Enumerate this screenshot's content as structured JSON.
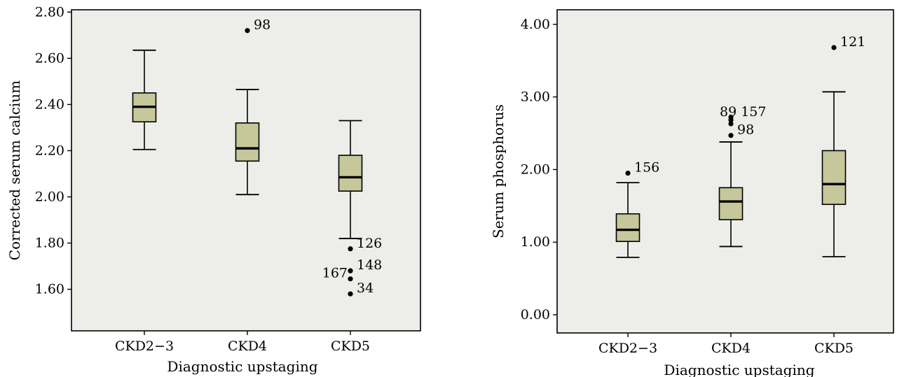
{
  "colors": {
    "plot_background": "#ededea",
    "box_fill": "#c6c79a",
    "stroke": "#000000"
  },
  "chart_data": [
    {
      "type": "boxplot",
      "xlabel": "Diagnostic upstaging",
      "ylabel": "Corrected serum calcium",
      "ylim": [
        1.42,
        2.81
      ],
      "yticks": [
        1.6,
        1.8,
        2.0,
        2.2,
        2.4,
        2.6,
        2.8
      ],
      "ytick_labels": [
        "1.60",
        "1.80",
        "2.00",
        "2.20",
        "2.40",
        "2.60",
        "2.80"
      ],
      "grid": false,
      "categories": [
        "CKD2−3",
        "CKD4",
        "CKD5"
      ],
      "boxes": [
        {
          "whisker_low": 2.205,
          "q1": 2.325,
          "median": 2.39,
          "q3": 2.45,
          "whisker_high": 2.635,
          "outliers": []
        },
        {
          "whisker_low": 2.01,
          "q1": 2.155,
          "median": 2.21,
          "q3": 2.32,
          "whisker_high": 2.465,
          "outliers": [
            {
              "value": 2.72,
              "label": "98",
              "side": "right"
            }
          ]
        },
        {
          "whisker_low": 1.82,
          "q1": 2.025,
          "median": 2.085,
          "q3": 2.18,
          "whisker_high": 2.33,
          "outliers": [
            {
              "value": 1.775,
              "label": "126",
              "side": "right"
            },
            {
              "value": 1.68,
              "label": "148",
              "side": "right"
            },
            {
              "value": 1.645,
              "label": "167",
              "side": "left"
            },
            {
              "value": 1.58,
              "label": "34",
              "side": "right"
            }
          ]
        }
      ]
    },
    {
      "type": "boxplot",
      "xlabel": "Diagnostic upstaging",
      "ylabel": "Serum phosphorus",
      "ylim": [
        -0.25,
        4.2
      ],
      "yticks": [
        0,
        1,
        2,
        3,
        4
      ],
      "ytick_labels": [
        "0.00",
        "1.00",
        "2.00",
        "3.00",
        "4.00"
      ],
      "grid": false,
      "categories": [
        "CKD2−3",
        "CKD4",
        "CKD5"
      ],
      "boxes": [
        {
          "whisker_low": 0.79,
          "q1": 1.01,
          "median": 1.17,
          "q3": 1.39,
          "whisker_high": 1.82,
          "outliers": [
            {
              "value": 1.95,
              "label": "156",
              "side": "right"
            }
          ]
        },
        {
          "whisker_low": 0.94,
          "q1": 1.31,
          "median": 1.56,
          "q3": 1.75,
          "whisker_high": 2.38,
          "outliers": [
            {
              "value": 2.72,
              "label": "",
              "side": "right"
            },
            {
              "value": 2.68,
              "label": "89 157",
              "side": "center"
            },
            {
              "value": 2.63,
              "label": "",
              "side": "right"
            },
            {
              "value": 2.47,
              "label": "98",
              "side": "right"
            }
          ]
        },
        {
          "whisker_low": 0.8,
          "q1": 1.52,
          "median": 1.8,
          "q3": 2.26,
          "whisker_high": 3.07,
          "outliers": [
            {
              "value": 3.68,
              "label": "121",
              "side": "right"
            }
          ]
        }
      ]
    }
  ]
}
